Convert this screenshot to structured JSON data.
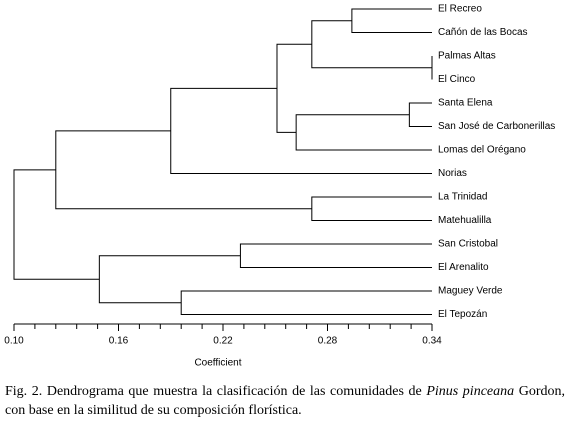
{
  "chart_data": {
    "type": "dendrogram",
    "xlabel": "Coefficient",
    "xlim": [
      0.1,
      0.34
    ],
    "xticks": [
      {
        "value": 0.1,
        "label": "0.10"
      },
      {
        "value": 0.16,
        "label": "0.16"
      },
      {
        "value": 0.22,
        "label": "0.22"
      },
      {
        "value": 0.28,
        "label": "0.28"
      },
      {
        "value": 0.34,
        "label": "0.34"
      }
    ],
    "xminorticks": [
      0.112,
      0.124,
      0.136,
      0.148,
      0.172,
      0.184,
      0.196,
      0.208,
      0.232,
      0.244,
      0.256,
      0.268,
      0.292,
      0.304,
      0.316,
      0.328
    ],
    "color": "#000000",
    "tree": {
      "height": 0.1,
      "children": [
        {
          "height": 0.124,
          "children": [
            {
              "height": 0.19,
              "children": [
                {
                  "height": 0.251,
                  "children": [
                    {
                      "height": 0.271,
                      "children": [
                        {
                          "height": 0.294,
                          "children": [
                            {
                              "label": "El Recreo"
                            },
                            {
                              "label": "Cañón de las Bocas"
                            }
                          ]
                        },
                        {
                          "height": 0.34,
                          "children": [
                            {
                              "label": "Palmas Altas"
                            },
                            {
                              "label": "El Cinco"
                            }
                          ]
                        }
                      ]
                    },
                    {
                      "height": 0.262,
                      "children": [
                        {
                          "height": 0.327,
                          "children": [
                            {
                              "label": "Santa Elena"
                            },
                            {
                              "label": "San José de Carbonerillas"
                            }
                          ]
                        },
                        {
                          "label": "Lomas del Orégano"
                        }
                      ]
                    }
                  ]
                },
                {
                  "label": "Norias"
                }
              ]
            },
            {
              "height": 0.271,
              "children": [
                {
                  "label": "La Trinidad"
                },
                {
                  "label": "Matehualilla"
                }
              ]
            }
          ]
        },
        {
          "height": 0.149,
          "children": [
            {
              "height": 0.23,
              "children": [
                {
                  "label": "San Cristobal"
                },
                {
                  "label": "El Arenalito"
                }
              ]
            },
            {
              "height": 0.196,
              "children": [
                {
                  "label": "Maguey Verde"
                },
                {
                  "label": "El Tepozán"
                }
              ]
            }
          ]
        }
      ]
    }
  },
  "caption": {
    "parts": [
      "Fig. 2. Dendrograma que muestra la clasificación de las comunidades de ",
      "Pinus pinceana",
      " Gordon, con base en la similitud de su composición florística."
    ]
  }
}
